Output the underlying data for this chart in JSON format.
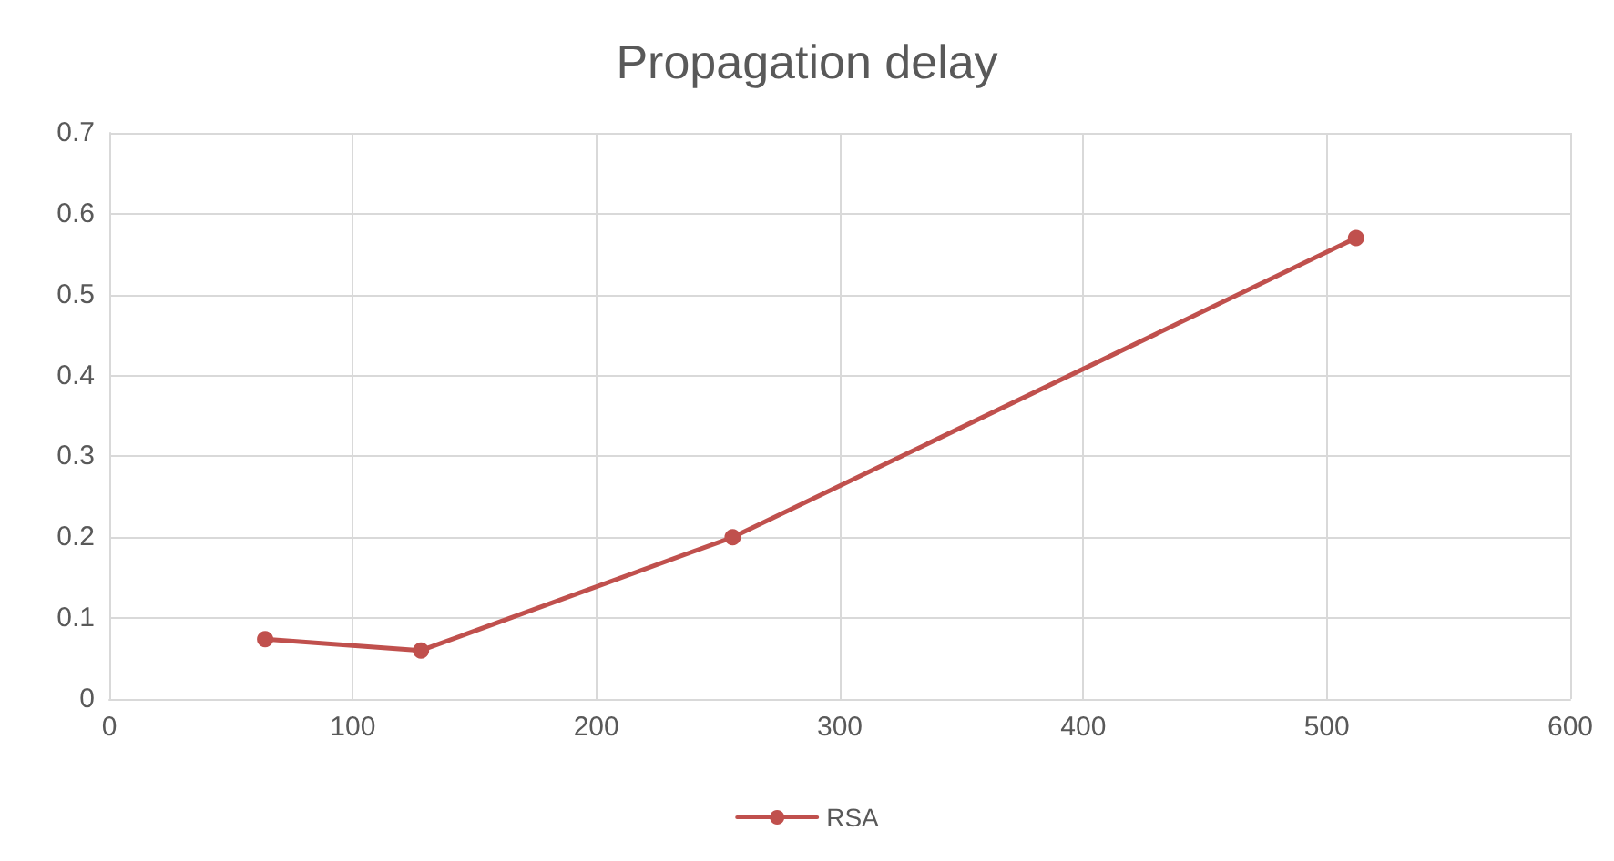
{
  "chart_data": {
    "type": "line",
    "title": "Propagation delay",
    "x": [
      64,
      128,
      256,
      512
    ],
    "series": [
      {
        "name": "RSA",
        "color": "#c0504d",
        "values": [
          0.074,
          0.06,
          0.2,
          0.57
        ]
      }
    ],
    "xlim": [
      0,
      600
    ],
    "xticks": [
      0,
      100,
      200,
      300,
      400,
      500,
      600
    ],
    "ylim": [
      0,
      0.7
    ],
    "yticks": [
      0,
      0.1,
      0.2,
      0.3,
      0.4,
      0.5,
      0.6,
      0.7
    ],
    "grid": true,
    "legend": "bottom",
    "marker": "circle",
    "line_style": "solid"
  }
}
